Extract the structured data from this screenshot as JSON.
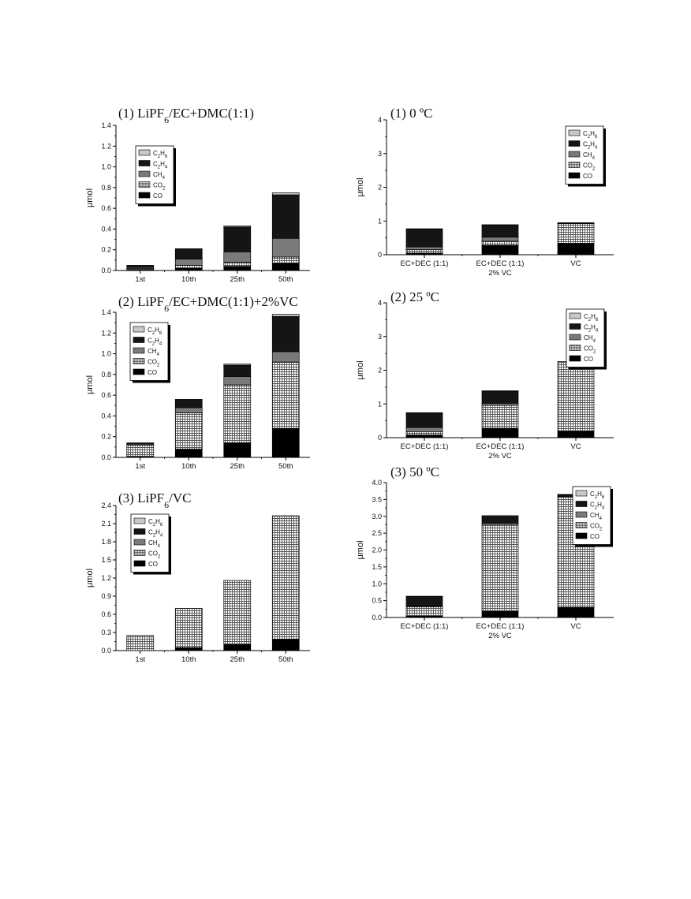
{
  "colors": {
    "C2H6": "#c8c8c8",
    "C2H4": "#151515",
    "CH4": "#7a7a7a",
    "CO2": "pattern-checker-grid",
    "CO": "#000000"
  },
  "chart_data": [
    {
      "type": "bar",
      "stacked": true,
      "title": [
        "(1) LiPF",
        "6",
        "/EC+DMC(1:1)"
      ],
      "ylabel": "μmol",
      "categories": [
        "1st",
        "10th",
        "25th",
        "50th"
      ],
      "ylim": [
        0,
        1.4
      ],
      "yticks": [
        "0.0",
        "0.2",
        "0.4",
        "0.6",
        "0.8",
        "1.0",
        "1.2",
        "1.4"
      ],
      "legend_position": "top-left",
      "legend": [
        [
          "C",
          "2",
          "H",
          "6"
        ],
        [
          "C",
          "2",
          "H",
          "4"
        ],
        [
          "CH",
          "4"
        ],
        [
          "CO",
          "2"
        ],
        [
          "CO"
        ]
      ],
      "series": [
        {
          "key": "CO",
          "values": [
            0.01,
            0.02,
            0.04,
            0.07
          ]
        },
        {
          "key": "CO2",
          "values": [
            0.01,
            0.03,
            0.04,
            0.06
          ]
        },
        {
          "key": "CH4",
          "values": [
            0.01,
            0.06,
            0.1,
            0.18
          ]
        },
        {
          "key": "C2H4",
          "values": [
            0.02,
            0.1,
            0.24,
            0.42
          ]
        },
        {
          "key": "C2H6",
          "values": [
            0.0,
            0.0,
            0.01,
            0.02
          ]
        }
      ]
    },
    {
      "type": "bar",
      "stacked": true,
      "title": [
        "(2) LiPF",
        "6",
        "/EC+DMC(1:1)+2%VC"
      ],
      "ylabel": "μmol",
      "categories": [
        "1st",
        "10th",
        "25th",
        "50th"
      ],
      "ylim": [
        0,
        1.4
      ],
      "yticks": [
        "0.0",
        "0.2",
        "0.4",
        "0.6",
        "0.8",
        "1.0",
        "1.2",
        "1.4"
      ],
      "legend_position": "top-left",
      "legend": [
        [
          "C",
          "2",
          "H",
          "6"
        ],
        [
          "C",
          "2",
          "H",
          "4"
        ],
        [
          "CH",
          "4"
        ],
        [
          "CO",
          "2"
        ],
        [
          "CO"
        ]
      ],
      "series": [
        {
          "key": "CO",
          "values": [
            0.01,
            0.08,
            0.14,
            0.28
          ]
        },
        {
          "key": "CO2",
          "values": [
            0.11,
            0.35,
            0.56,
            0.64
          ]
        },
        {
          "key": "CH4",
          "values": [
            0.01,
            0.05,
            0.08,
            0.1
          ]
        },
        {
          "key": "C2H4",
          "values": [
            0.01,
            0.08,
            0.11,
            0.34
          ]
        },
        {
          "key": "C2H6",
          "values": [
            0.0,
            0.0,
            0.01,
            0.02
          ]
        }
      ]
    },
    {
      "type": "bar",
      "stacked": true,
      "title": [
        "(3) LiPF",
        "6",
        "/VC"
      ],
      "ylabel": "μmol",
      "categories": [
        "1st",
        "10th",
        "25th",
        "50th"
      ],
      "ylim": [
        0,
        2.4
      ],
      "yticks": [
        "0.0",
        "0.3",
        "0.6",
        "0.9",
        "1.2",
        "1.5",
        "1.8",
        "2.1",
        "2.4"
      ],
      "legend_position": "top-left",
      "legend": [
        [
          "C",
          "2",
          "H",
          "6"
        ],
        [
          "C",
          "2",
          "H",
          "4"
        ],
        [
          "CH",
          "4"
        ],
        [
          "CO",
          "2"
        ],
        [
          "CO"
        ]
      ],
      "series": [
        {
          "key": "CO",
          "values": [
            0.0,
            0.05,
            0.1,
            0.19
          ]
        },
        {
          "key": "CO2",
          "values": [
            0.25,
            0.65,
            1.06,
            2.04
          ]
        },
        {
          "key": "CH4",
          "values": [
            0,
            0,
            0,
            0
          ]
        },
        {
          "key": "C2H4",
          "values": [
            0,
            0,
            0,
            0
          ]
        },
        {
          "key": "C2H6",
          "values": [
            0,
            0,
            0,
            0
          ]
        }
      ]
    },
    {
      "type": "bar",
      "stacked": true,
      "title": [
        "(1) 0 ºC"
      ],
      "ylabel": "μmol",
      "categories": [
        [
          "EC+DEC (1:1)"
        ],
        [
          "EC+DEC (1:1)",
          "2% VC"
        ],
        [
          "VC"
        ]
      ],
      "ylim": [
        0,
        4
      ],
      "yticks": [
        "0",
        "1",
        "2",
        "3",
        "4"
      ],
      "legend_position": "top-right",
      "legend": [
        [
          "C",
          "2",
          "H",
          "6"
        ],
        [
          "C",
          "2",
          "H",
          "4"
        ],
        [
          "CH",
          "4"
        ],
        [
          "CO",
          "2"
        ],
        [
          "CO"
        ]
      ],
      "series": [
        {
          "key": "CO",
          "values": [
            0.05,
            0.28,
            0.34
          ]
        },
        {
          "key": "CO2",
          "values": [
            0.1,
            0.12,
            0.58
          ]
        },
        {
          "key": "CH4",
          "values": [
            0.08,
            0.12,
            0.0
          ]
        },
        {
          "key": "C2H4",
          "values": [
            0.53,
            0.36,
            0.03
          ]
        },
        {
          "key": "C2H6",
          "values": [
            0.01,
            0.01,
            0.0
          ]
        }
      ]
    },
    {
      "type": "bar",
      "stacked": true,
      "title": [
        "(2) 25 ºC"
      ],
      "ylabel": "μmol",
      "categories": [
        [
          "EC+DEC (1:1)"
        ],
        [
          "EC+DEC (1:1)",
          "2% VC"
        ],
        [
          "VC"
        ]
      ],
      "ylim": [
        0,
        4
      ],
      "yticks": [
        "0",
        "1",
        "2",
        "3",
        "4"
      ],
      "legend_position": "top-right",
      "legend": [
        [
          "C",
          "2",
          "H",
          "6"
        ],
        [
          "C",
          "2",
          "H",
          "4"
        ],
        [
          "CH",
          "4"
        ],
        [
          "CO",
          "2"
        ],
        [
          "CO"
        ]
      ],
      "series": [
        {
          "key": "CO",
          "values": [
            0.08,
            0.28,
            0.2
          ]
        },
        {
          "key": "CO2",
          "values": [
            0.1,
            0.68,
            2.06
          ]
        },
        {
          "key": "CH4",
          "values": [
            0.12,
            0.06,
            0.0
          ]
        },
        {
          "key": "C2H4",
          "values": [
            0.43,
            0.36,
            0.0
          ]
        },
        {
          "key": "C2H6",
          "values": [
            0.01,
            0.01,
            0.0
          ]
        }
      ]
    },
    {
      "type": "bar",
      "stacked": true,
      "title": [
        "(3) 50 ºC"
      ],
      "ylabel": "μmol",
      "categories": [
        [
          "EC+DEC (1:1)"
        ],
        [
          "EC+DEC (1:1)",
          "2% VC"
        ],
        [
          "VC"
        ]
      ],
      "ylim": [
        0,
        4.0
      ],
      "yticks": [
        "0.0",
        "0.5",
        "1.0",
        "1.5",
        "2.0",
        "2.5",
        "3.0",
        "3.5",
        "4.0"
      ],
      "legend_position": "top-right",
      "legend": [
        [
          "C",
          "2",
          "H",
          "6"
        ],
        [
          "C",
          "2",
          "H",
          "4"
        ],
        [
          "CH",
          "4"
        ],
        [
          "CO",
          "2"
        ],
        [
          "CO"
        ]
      ],
      "series": [
        {
          "key": "CO",
          "values": [
            0.04,
            0.18,
            0.3
          ]
        },
        {
          "key": "CO2",
          "values": [
            0.28,
            2.58,
            3.28
          ]
        },
        {
          "key": "CH4",
          "values": [
            0.02,
            0.04,
            0.02
          ]
        },
        {
          "key": "C2H4",
          "values": [
            0.28,
            0.2,
            0.04
          ]
        },
        {
          "key": "C2H6",
          "values": [
            0.01,
            0.02,
            0.01
          ]
        }
      ]
    }
  ]
}
